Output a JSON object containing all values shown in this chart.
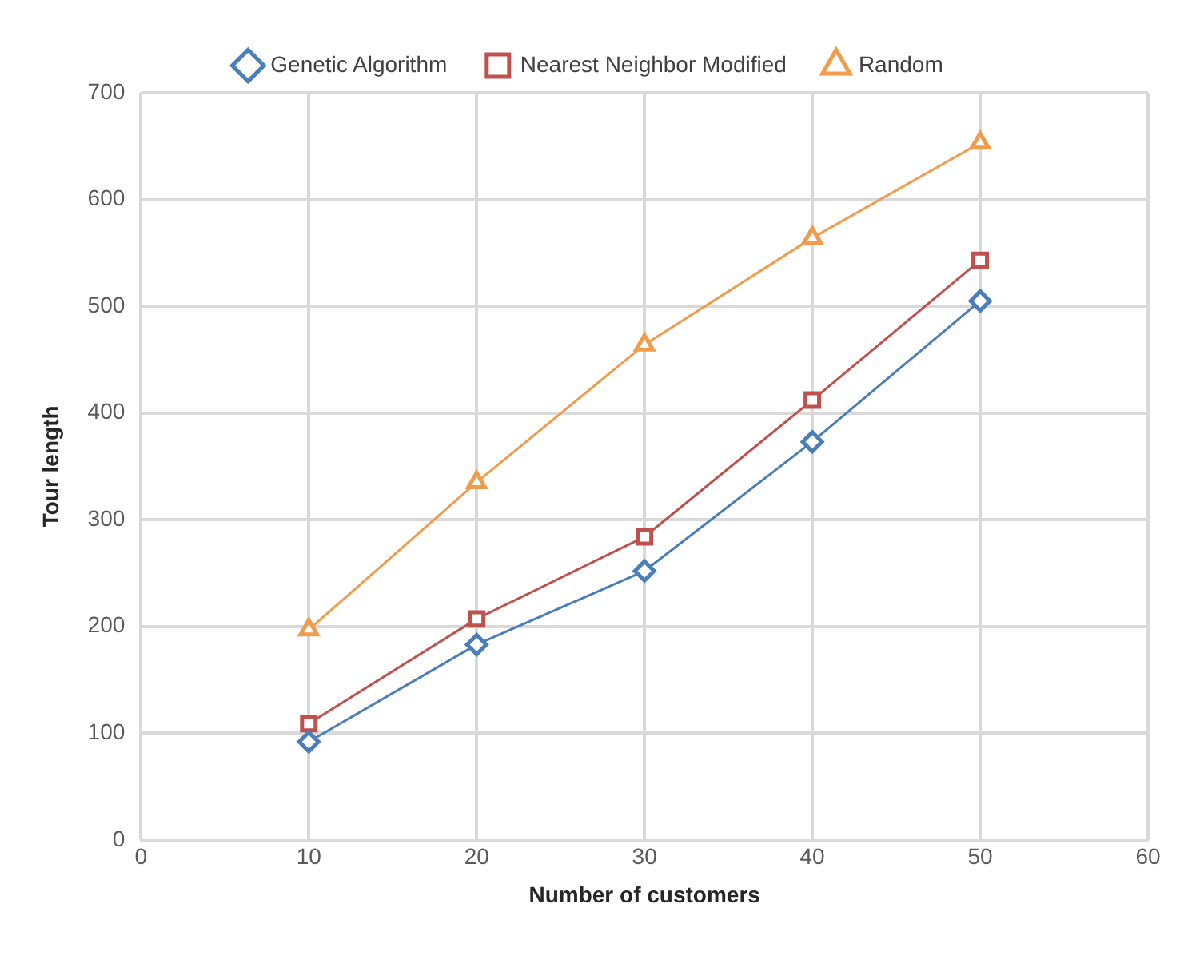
{
  "chart_data": {
    "type": "line",
    "xlabel": "Number of customers",
    "ylabel": "Tour length",
    "x": [
      10,
      20,
      30,
      40,
      50
    ],
    "xlim": [
      0,
      60
    ],
    "xticks": [
      0,
      10,
      20,
      30,
      40,
      50,
      60
    ],
    "ylim": [
      0,
      700
    ],
    "yticks": [
      0,
      100,
      200,
      300,
      400,
      500,
      600,
      700
    ],
    "grid": true,
    "legend": "top",
    "series": [
      {
        "name": "Genetic Algorithm",
        "color": "#4a7ebb",
        "marker": "diamond",
        "values": [
          92,
          183,
          252,
          373,
          505
        ]
      },
      {
        "name": "Nearest Neighbor Modified",
        "color": "#c0504d",
        "marker": "square",
        "values": [
          109,
          207,
          284,
          412,
          543
        ]
      },
      {
        "name": "Random",
        "color": "#f29b4a",
        "marker": "triangle",
        "values": [
          197,
          335,
          464,
          564,
          653
        ]
      }
    ]
  }
}
